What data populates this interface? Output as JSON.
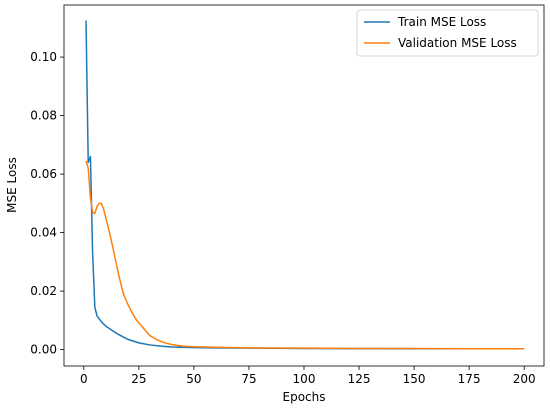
{
  "chart_data": {
    "type": "line",
    "title": "",
    "xlabel": "Epochs",
    "ylabel": "MSE Loss",
    "xlim": [
      -9,
      209
    ],
    "ylim": [
      -0.0056,
      0.1178
    ],
    "xticks": [
      0,
      25,
      50,
      75,
      100,
      125,
      150,
      175,
      200
    ],
    "xtick_labels": [
      "0",
      "25",
      "50",
      "75",
      "100",
      "125",
      "150",
      "175",
      "200"
    ],
    "yticks": [
      0.0,
      0.02,
      0.04,
      0.06,
      0.08,
      0.1
    ],
    "ytick_labels": [
      "0.00",
      "0.02",
      "0.04",
      "0.06",
      "0.08",
      "0.10"
    ],
    "grid": false,
    "legend_position": "top-right",
    "series": [
      {
        "name": "Train MSE Loss",
        "color": "#1f77b4",
        "x": [
          1,
          2,
          3,
          4,
          5,
          6,
          8,
          10,
          12,
          15,
          18,
          20,
          25,
          30,
          35,
          40,
          50,
          60,
          75,
          100,
          125,
          150,
          175,
          200
        ],
        "y": [
          0.1125,
          0.064,
          0.066,
          0.033,
          0.0145,
          0.0115,
          0.0095,
          0.008,
          0.007,
          0.0055,
          0.0043,
          0.0035,
          0.0023,
          0.0016,
          0.0012,
          0.0009,
          0.0007,
          0.0006,
          0.0005,
          0.0004,
          0.00035,
          0.0003,
          0.0003,
          0.0003
        ]
      },
      {
        "name": "Validation MSE Loss",
        "color": "#ff7f0e",
        "x": [
          1,
          2,
          3,
          4,
          5,
          6,
          7,
          8,
          9,
          10,
          12,
          14,
          16,
          18,
          20,
          22,
          24,
          26,
          28,
          30,
          33,
          36,
          40,
          45,
          50,
          60,
          75,
          100,
          125,
          150,
          175,
          200
        ],
        "y": [
          0.0645,
          0.062,
          0.052,
          0.047,
          0.0465,
          0.049,
          0.05,
          0.05,
          0.048,
          0.045,
          0.039,
          0.032,
          0.025,
          0.019,
          0.0155,
          0.0125,
          0.01,
          0.0083,
          0.0065,
          0.0048,
          0.0035,
          0.0025,
          0.0017,
          0.0012,
          0.001,
          0.0008,
          0.0006,
          0.0005,
          0.0004,
          0.0004,
          0.0003,
          0.0003
        ]
      }
    ]
  }
}
